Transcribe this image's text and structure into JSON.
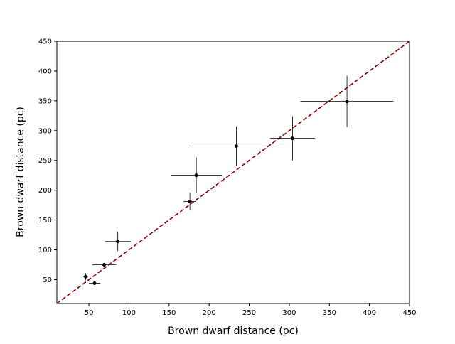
{
  "chart_data": {
    "type": "scatter",
    "title": "",
    "xlabel": "Brown dwarf distance (pc)",
    "ylabel": "Brown dwarf distance (pc)",
    "xlim": [
      10,
      450
    ],
    "ylim": [
      10,
      450
    ],
    "xticks": [
      50,
      100,
      150,
      200,
      250,
      300,
      350,
      400,
      450
    ],
    "yticks": [
      50,
      100,
      150,
      200,
      250,
      300,
      350,
      400,
      450
    ],
    "grid": false,
    "colors": {
      "points": "#000000",
      "reference_line": "#8b0000"
    },
    "reference_line": {
      "style": "dashed",
      "from": [
        10,
        10
      ],
      "to": [
        450,
        450
      ]
    },
    "points": [
      {
        "x": 46,
        "xerr": 3,
        "y": 55,
        "yerr": 6
      },
      {
        "x": 57,
        "xerr": 7,
        "y": 44,
        "yerr": 3
      },
      {
        "x": 69,
        "xerr": 15,
        "y": 75,
        "yerr": 3
      },
      {
        "x": 86,
        "xerr": 16,
        "y": 114,
        "yerr": 16
      },
      {
        "x": 176,
        "xerr": 8,
        "y": 181,
        "yerr": 15
      },
      {
        "x": 184,
        "xerr": 32,
        "y": 225,
        "yerr": 30
      },
      {
        "x": 234,
        "xerr": 60,
        "y": 274,
        "yerr": 33
      },
      {
        "x": 304,
        "xerr": 28,
        "y": 287,
        "yerr": 37
      },
      {
        "x": 372,
        "xerr": 58,
        "y": 349,
        "yerr": 43
      }
    ]
  }
}
